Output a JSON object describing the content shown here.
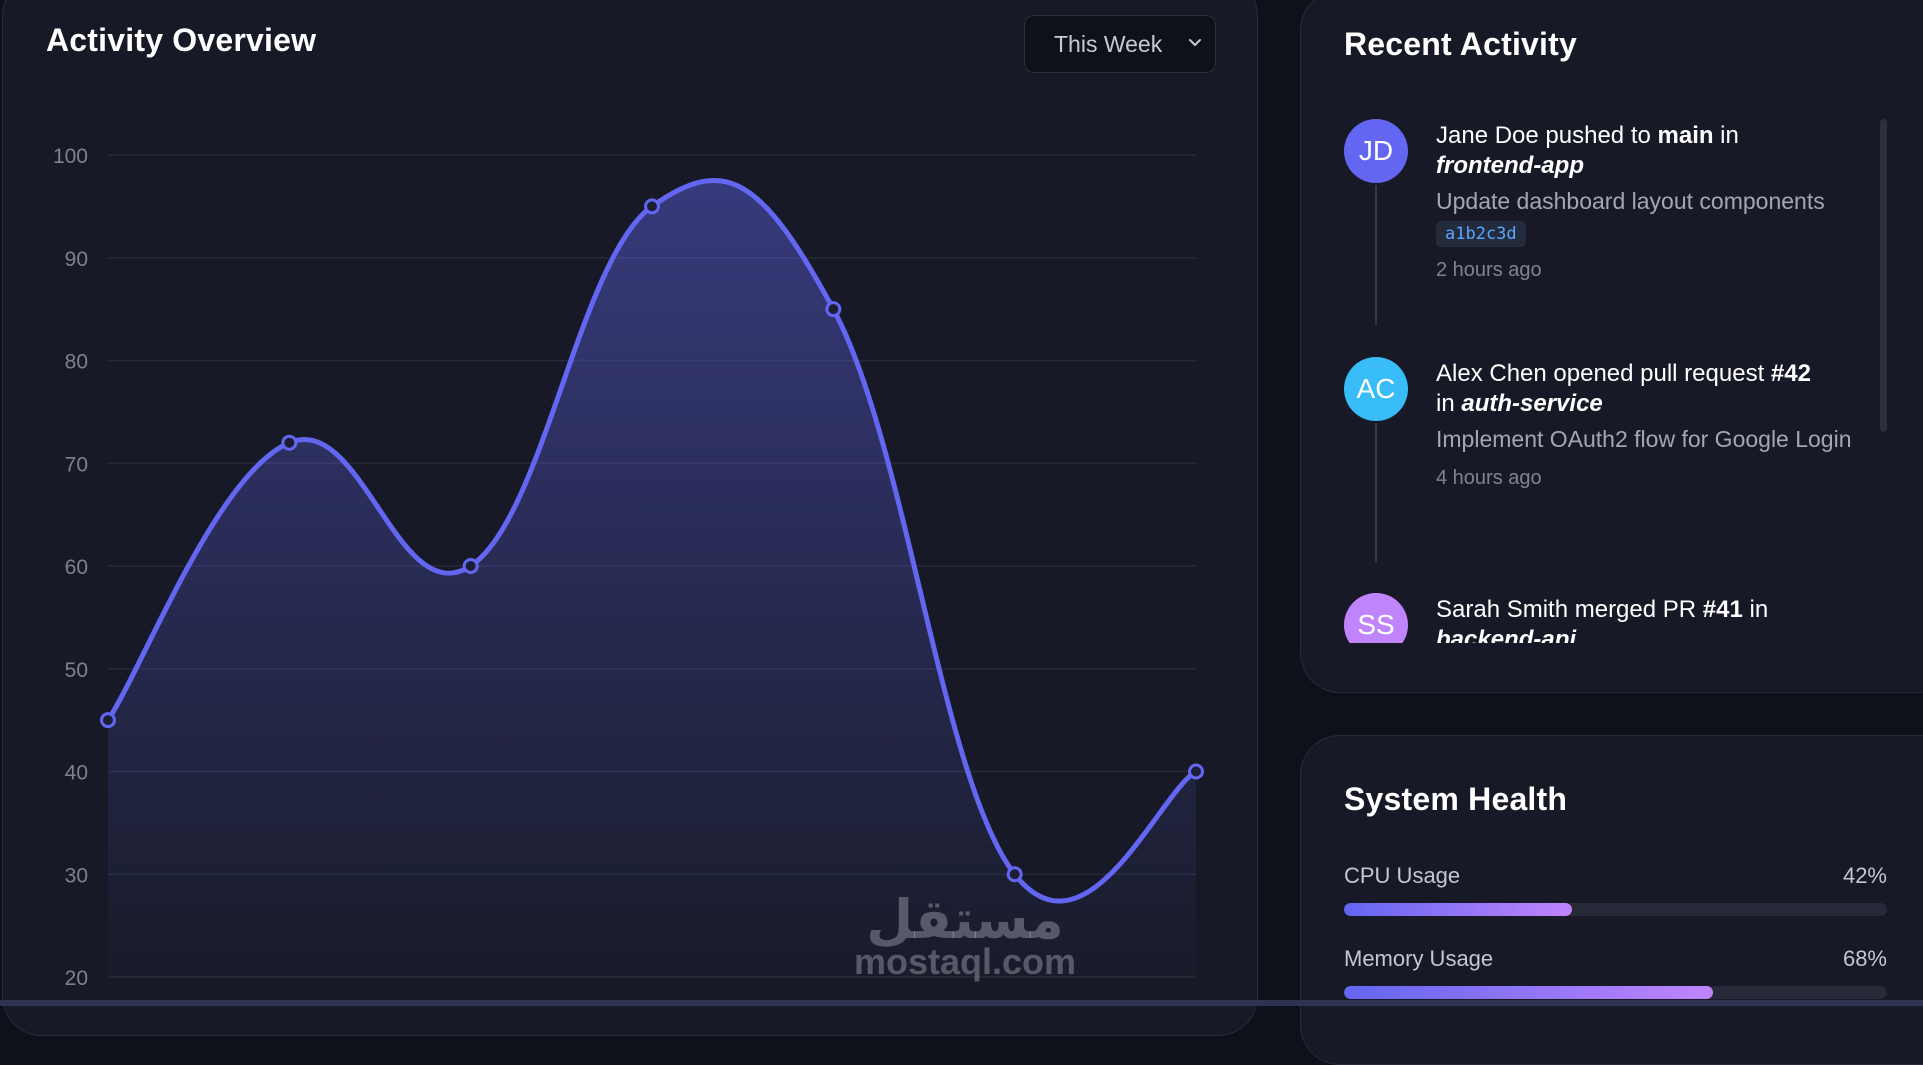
{
  "chart": {
    "title": "Activity Overview",
    "period_select": {
      "value": "This Week",
      "icon": "chevron-down-icon"
    }
  },
  "chart_data": {
    "type": "area",
    "title": "Activity Overview",
    "yticks": [
      20,
      30,
      40,
      50,
      60,
      70,
      80,
      90,
      100
    ],
    "ylim": [
      20,
      100
    ],
    "values": [
      45,
      72,
      60,
      95,
      85,
      30,
      40
    ],
    "smooth": true,
    "grid": true,
    "line_color": "#6366f1"
  },
  "activity": {
    "title": "Recent Activity",
    "items": [
      {
        "initials": "JD",
        "avatar_color": "#6366f1",
        "pre": "Jane Doe pushed to ",
        "bold": "main",
        "mid": " in",
        "repo": "frontend-app",
        "description": "Update dashboard layout components",
        "commit": "a1b2c3d",
        "time": "2 hours ago"
      },
      {
        "initials": "AC",
        "avatar_color": "#38bdf8",
        "pre": "Alex Chen opened pull request ",
        "bold": "#42",
        "mid": " in ",
        "repo": "auth-service",
        "description": "Implement OAuth2 flow for Google Login",
        "time": "4 hours ago"
      },
      {
        "initials": "SS",
        "avatar_color": "#c084fc",
        "pre": "Sarah Smith merged PR ",
        "bold": "#41",
        "mid": " in",
        "repo": "backend-api"
      }
    ]
  },
  "health": {
    "title": "System Health",
    "metrics": [
      {
        "label": "CPU Usage",
        "value": "42%",
        "fraction": 0.42
      },
      {
        "label": "Memory Usage",
        "value": "68%",
        "fraction": 0.68
      }
    ]
  },
  "watermark": {
    "arabic": "مستقل",
    "latin": "mostaql.com"
  }
}
